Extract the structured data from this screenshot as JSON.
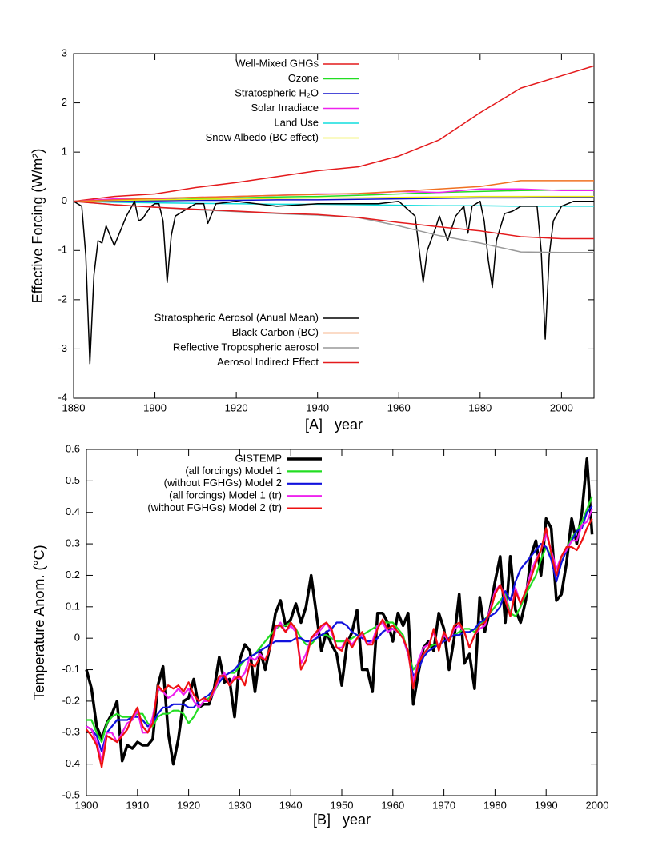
{
  "chart_data": [
    {
      "type": "line",
      "x_label": "[A]   year",
      "y_label": "Effective Forcing (W/m²)",
      "xlim": [
        1880,
        2008
      ],
      "xticks": [
        1880,
        1900,
        1920,
        1940,
        1960,
        1980,
        2000
      ],
      "ylim": [
        -4,
        3
      ],
      "yticks": [
        -4,
        -3,
        -2,
        -1,
        0,
        1,
        2,
        3
      ],
      "x": [
        1880,
        1890,
        1900,
        1910,
        1920,
        1930,
        1940,
        1950,
        1960,
        1970,
        1980,
        1990,
        2000,
        2008
      ],
      "series": [
        {
          "name": "Well-Mixed GHGs",
          "color": "#e41a1c",
          "legend": "top",
          "values": [
            0,
            0.1,
            0.15,
            0.28,
            0.38,
            0.5,
            0.62,
            0.7,
            0.92,
            1.25,
            1.8,
            2.3,
            2.55,
            2.75
          ]
        },
        {
          "name": "Ozone",
          "color": "#22dd22",
          "legend": "top",
          "values": [
            0,
            0.02,
            0.03,
            0.05,
            0.07,
            0.09,
            0.1,
            0.12,
            0.15,
            0.18,
            0.2,
            0.22,
            0.23,
            0.23
          ]
        },
        {
          "name": "Stratospheric H₂O",
          "color": "#1111cc",
          "legend": "top",
          "values": [
            0,
            0.01,
            0.01,
            0.02,
            0.02,
            0.03,
            0.03,
            0.04,
            0.05,
            0.06,
            0.07,
            0.07,
            0.08,
            0.08
          ]
        },
        {
          "name": "Solar Irradiace",
          "color": "#ee22ee",
          "legend": "top",
          "values": [
            0,
            0.05,
            0.05,
            0.08,
            0.1,
            0.12,
            0.15,
            0.15,
            0.2,
            0.18,
            0.25,
            0.25,
            0.22,
            0.22
          ]
        },
        {
          "name": "Land Use",
          "color": "#11dddd",
          "legend": "top",
          "values": [
            0,
            -0.02,
            -0.03,
            -0.04,
            -0.05,
            -0.06,
            -0.06,
            -0.07,
            -0.08,
            -0.09,
            -0.09,
            -0.1,
            -0.1,
            -0.1
          ]
        },
        {
          "name": "Snow Albedo (BC effect)",
          "color": "#eeee11",
          "legend": "top",
          "values": [
            0,
            0.02,
            0.03,
            0.04,
            0.05,
            0.06,
            0.07,
            0.07,
            0.08,
            0.09,
            0.1,
            0.1,
            0.1,
            0.1
          ]
        },
        {
          "name": "Stratospheric Aerosol (Anual Mean)",
          "color": "#000000",
          "legend": "bottom",
          "x": [
            1880,
            1882,
            1883,
            1884,
            1885,
            1886,
            1887,
            1888,
            1889,
            1890,
            1891,
            1893,
            1895,
            1896,
            1897,
            1899,
            1900,
            1901,
            1902,
            1903,
            1904,
            1905,
            1907,
            1910,
            1912,
            1913,
            1915,
            1920,
            1930,
            1940,
            1950,
            1955,
            1960,
            1964,
            1966,
            1967,
            1969,
            1970,
            1972,
            1974,
            1976,
            1977,
            1978,
            1980,
            1981,
            1982,
            1983,
            1984,
            1986,
            1988,
            1990,
            1994,
            1995,
            1996,
            1997,
            1998,
            2000,
            2003,
            2008
          ],
          "values": [
            0,
            -0.1,
            -1.1,
            -3.3,
            -1.5,
            -0.8,
            -0.85,
            -0.5,
            -0.7,
            -0.9,
            -0.7,
            -0.3,
            0,
            -0.4,
            -0.35,
            -0.1,
            -0.05,
            -0.05,
            -0.4,
            -1.65,
            -0.7,
            -0.3,
            -0.2,
            -0.05,
            -0.05,
            -0.45,
            -0.05,
            0,
            -0.1,
            -0.05,
            -0.05,
            -0.05,
            0,
            -0.3,
            -1.65,
            -1.0,
            -0.55,
            -0.3,
            -0.8,
            -0.3,
            -0.1,
            -0.65,
            -0.1,
            0,
            -0.4,
            -1.2,
            -1.75,
            -0.8,
            -0.25,
            -0.2,
            -0.1,
            -0.1,
            -1,
            -2.8,
            -1.1,
            -0.4,
            -0.1,
            0,
            0
          ]
        },
        {
          "name": "Black Carbon (BC)",
          "color": "#f07020",
          "legend": "bottom",
          "values": [
            0,
            0.03,
            0.06,
            0.08,
            0.1,
            0.12,
            0.14,
            0.16,
            0.2,
            0.25,
            0.3,
            0.42,
            0.42,
            0.42
          ]
        },
        {
          "name": "Reflective Tropospheric aerosol",
          "color": "#999999",
          "legend": "bottom",
          "values": [
            0,
            -0.07,
            -0.12,
            -0.17,
            -0.21,
            -0.25,
            -0.28,
            -0.33,
            -0.5,
            -0.7,
            -0.85,
            -1.03,
            -1.04,
            -1.04
          ]
        },
        {
          "name": "Aerosol Indirect Effect",
          "color": "#e41a1c",
          "legend": "bottom",
          "values": [
            0,
            -0.07,
            -0.12,
            -0.16,
            -0.2,
            -0.24,
            -0.27,
            -0.33,
            -0.43,
            -0.52,
            -0.6,
            -0.72,
            -0.76,
            -0.76
          ]
        }
      ]
    },
    {
      "type": "line",
      "x_label": "[B]   year",
      "y_label": "Temperature Anom. (°C)",
      "xlim": [
        1900,
        2000
      ],
      "xticks": [
        1900,
        1910,
        1920,
        1930,
        1940,
        1950,
        1960,
        1970,
        1980,
        1990,
        2000
      ],
      "ylim": [
        -0.5,
        0.6
      ],
      "yticks": [
        -0.5,
        -0.4,
        -0.3,
        -0.2,
        -0.1,
        0,
        0.1,
        0.2,
        0.3,
        0.4,
        0.5,
        0.6
      ],
      "x": [
        1900,
        1901,
        1902,
        1903,
        1904,
        1905,
        1906,
        1907,
        1908,
        1909,
        1910,
        1911,
        1912,
        1913,
        1914,
        1915,
        1916,
        1917,
        1918,
        1919,
        1920,
        1921,
        1922,
        1923,
        1924,
        1925,
        1926,
        1927,
        1928,
        1929,
        1930,
        1931,
        1932,
        1933,
        1934,
        1935,
        1936,
        1937,
        1938,
        1939,
        1940,
        1941,
        1942,
        1943,
        1944,
        1945,
        1946,
        1947,
        1948,
        1949,
        1950,
        1951,
        1952,
        1953,
        1954,
        1955,
        1956,
        1957,
        1958,
        1959,
        1960,
        1961,
        1962,
        1963,
        1964,
        1965,
        1966,
        1967,
        1968,
        1969,
        1970,
        1971,
        1972,
        1973,
        1974,
        1975,
        1976,
        1977,
        1978,
        1979,
        1980,
        1981,
        1982,
        1983,
        1984,
        1985,
        1986,
        1987,
        1988,
        1989,
        1990,
        1991,
        1992,
        1993,
        1994,
        1995,
        1996,
        1997,
        1998,
        1999
      ],
      "series": [
        {
          "name": "GISTEMP",
          "color": "#000000",
          "legend": "top",
          "values": [
            -0.1,
            -0.16,
            -0.28,
            -0.32,
            -0.27,
            -0.24,
            -0.2,
            -0.39,
            -0.34,
            -0.35,
            -0.33,
            -0.34,
            -0.34,
            -0.32,
            -0.15,
            -0.09,
            -0.3,
            -0.4,
            -0.32,
            -0.2,
            -0.19,
            -0.13,
            -0.22,
            -0.21,
            -0.21,
            -0.16,
            -0.06,
            -0.14,
            -0.13,
            -0.25,
            -0.07,
            -0.02,
            -0.04,
            -0.17,
            -0.04,
            -0.1,
            -0.02,
            0.08,
            0.12,
            0.04,
            0.06,
            0.11,
            0.05,
            0.1,
            0.2,
            0.08,
            -0.04,
            0.02,
            -0.02,
            -0.05,
            -0.15,
            -0.02,
            0.02,
            0.09,
            -0.1,
            -0.1,
            -0.17,
            0.08,
            0.08,
            0.05,
            -0.01,
            0.08,
            0.04,
            0.08,
            -0.21,
            -0.11,
            -0.03,
            -0.01,
            -0.04,
            0.08,
            0.03,
            -0.1,
            0.0,
            0.14,
            -0.08,
            -0.05,
            -0.16,
            0.13,
            0.02,
            0.09,
            0.18,
            0.26,
            0.05,
            0.26,
            0.09,
            0.05,
            0.12,
            0.26,
            0.31,
            0.2,
            0.38,
            0.35,
            0.12,
            0.14,
            0.24,
            0.38,
            0.3,
            0.4,
            0.57,
            0.33
          ]
        },
        {
          "name": "(all forcings) Model 1",
          "color": "#22dd22",
          "legend": "top",
          "values": [
            -0.26,
            -0.26,
            -0.3,
            -0.33,
            -0.27,
            -0.25,
            -0.24,
            -0.25,
            -0.25,
            -0.25,
            -0.24,
            -0.24,
            -0.27,
            -0.28,
            -0.25,
            -0.24,
            -0.24,
            -0.23,
            -0.23,
            -0.24,
            -0.27,
            -0.25,
            -0.22,
            -0.2,
            -0.19,
            -0.17,
            -0.14,
            -0.12,
            -0.11,
            -0.11,
            -0.09,
            -0.07,
            -0.06,
            -0.05,
            -0.03,
            -0.01,
            0.01,
            0.03,
            0.04,
            0.04,
            0.05,
            0.03,
            0.0,
            -0.02,
            -0.02,
            0.0,
            0.01,
            0.01,
            0.0,
            -0.01,
            -0.01,
            -0.01,
            0.0,
            0.01,
            0.01,
            0.02,
            0.03,
            0.04,
            0.05,
            0.05,
            0.05,
            0.03,
            0.01,
            -0.05,
            -0.1,
            -0.08,
            -0.05,
            -0.03,
            -0.02,
            -0.02,
            -0.01,
            0.0,
            0.01,
            0.02,
            0.03,
            0.03,
            0.02,
            0.04,
            0.06,
            0.08,
            0.1,
            0.12,
            0.14,
            0.08,
            0.07,
            0.1,
            0.14,
            0.17,
            0.2,
            0.25,
            0.29,
            0.26,
            0.2,
            0.24,
            0.28,
            0.32,
            0.34,
            0.37,
            0.41,
            0.45
          ]
        },
        {
          "name": "(without FGHGs) Model 2",
          "color": "#1111dd",
          "legend": "top",
          "values": [
            -0.28,
            -0.29,
            -0.31,
            -0.36,
            -0.3,
            -0.28,
            -0.26,
            -0.26,
            -0.26,
            -0.25,
            -0.25,
            -0.26,
            -0.28,
            -0.27,
            -0.24,
            -0.22,
            -0.22,
            -0.21,
            -0.21,
            -0.21,
            -0.22,
            -0.22,
            -0.2,
            -0.19,
            -0.18,
            -0.16,
            -0.14,
            -0.12,
            -0.11,
            -0.1,
            -0.08,
            -0.07,
            -0.06,
            -0.05,
            -0.04,
            -0.03,
            -0.02,
            -0.01,
            -0.01,
            -0.01,
            -0.01,
            0.0,
            0.0,
            -0.01,
            -0.01,
            0.0,
            0.01,
            0.02,
            0.03,
            0.05,
            0.05,
            0.04,
            0.02,
            0.01,
            0.0,
            -0.01,
            -0.01,
            0.0,
            0.02,
            0.03,
            0.03,
            0.02,
            0.0,
            -0.05,
            -0.12,
            -0.1,
            -0.06,
            -0.04,
            -0.03,
            -0.02,
            -0.01,
            0.0,
            0.01,
            0.01,
            0.02,
            0.02,
            0.03,
            0.05,
            0.06,
            0.07,
            0.08,
            0.1,
            0.15,
            0.12,
            0.18,
            0.22,
            0.24,
            0.26,
            0.28,
            0.3,
            0.29,
            0.25,
            0.18,
            0.24,
            0.28,
            0.31,
            0.34,
            0.35,
            0.4,
            0.42
          ]
        },
        {
          "name": "(all forcings) Model 1 (tr)",
          "color": "#ee22ee",
          "legend": "top",
          "values": [
            -0.28,
            -0.29,
            -0.33,
            -0.39,
            -0.3,
            -0.3,
            -0.33,
            -0.3,
            -0.27,
            -0.26,
            -0.23,
            -0.3,
            -0.3,
            -0.25,
            -0.16,
            -0.17,
            -0.19,
            -0.18,
            -0.16,
            -0.18,
            -0.16,
            -0.2,
            -0.22,
            -0.2,
            -0.2,
            -0.17,
            -0.13,
            -0.11,
            -0.15,
            -0.12,
            -0.13,
            -0.11,
            -0.06,
            -0.07,
            -0.05,
            -0.07,
            -0.03,
            0.03,
            0.05,
            0.02,
            0.04,
            0.02,
            -0.08,
            -0.05,
            0.0,
            0.01,
            0.03,
            0.05,
            0.02,
            -0.03,
            -0.03,
            0.0,
            -0.02,
            0.0,
            0.01,
            -0.02,
            -0.01,
            0.04,
            0.05,
            0.02,
            0.03,
            0.02,
            0.0,
            -0.05,
            -0.14,
            -0.07,
            -0.03,
            -0.02,
            0.02,
            -0.03,
            0.01,
            -0.01,
            0.03,
            0.04,
            0.02,
            -0.03,
            0.01,
            0.03,
            0.04,
            0.09,
            0.15,
            0.17,
            0.13,
            0.07,
            0.16,
            0.11,
            0.15,
            0.21,
            0.25,
            0.28,
            0.33,
            0.28,
            0.22,
            0.26,
            0.28,
            0.31,
            0.31,
            0.36,
            0.37,
            0.41
          ]
        },
        {
          "name": "(without FGHGs) Model 2 (tr)",
          "color": "#ee1111",
          "legend": "top",
          "values": [
            -0.29,
            -0.31,
            -0.34,
            -0.41,
            -0.31,
            -0.32,
            -0.33,
            -0.31,
            -0.29,
            -0.25,
            -0.22,
            -0.28,
            -0.3,
            -0.27,
            -0.15,
            -0.17,
            -0.15,
            -0.16,
            -0.15,
            -0.17,
            -0.14,
            -0.18,
            -0.2,
            -0.19,
            -0.2,
            -0.16,
            -0.12,
            -0.12,
            -0.15,
            -0.13,
            -0.12,
            -0.15,
            -0.08,
            -0.09,
            -0.06,
            -0.07,
            -0.03,
            0.04,
            0.04,
            0.02,
            0.05,
            0.03,
            -0.1,
            -0.07,
            0.0,
            0.02,
            0.04,
            0.05,
            0.03,
            -0.03,
            -0.04,
            0.0,
            -0.03,
            0.0,
            0.02,
            -0.02,
            -0.02,
            0.03,
            0.06,
            0.03,
            0.04,
            0.02,
            0.0,
            -0.04,
            -0.16,
            -0.08,
            -0.05,
            -0.03,
            0.03,
            -0.04,
            0.02,
            -0.01,
            0.04,
            0.05,
            0.02,
            -0.03,
            0.01,
            0.04,
            0.05,
            0.08,
            0.14,
            0.17,
            0.12,
            0.07,
            0.15,
            0.11,
            0.15,
            0.19,
            0.24,
            0.28,
            0.35,
            0.27,
            0.2,
            0.26,
            0.29,
            0.29,
            0.28,
            0.31,
            0.35,
            0.38
          ]
        }
      ]
    }
  ]
}
